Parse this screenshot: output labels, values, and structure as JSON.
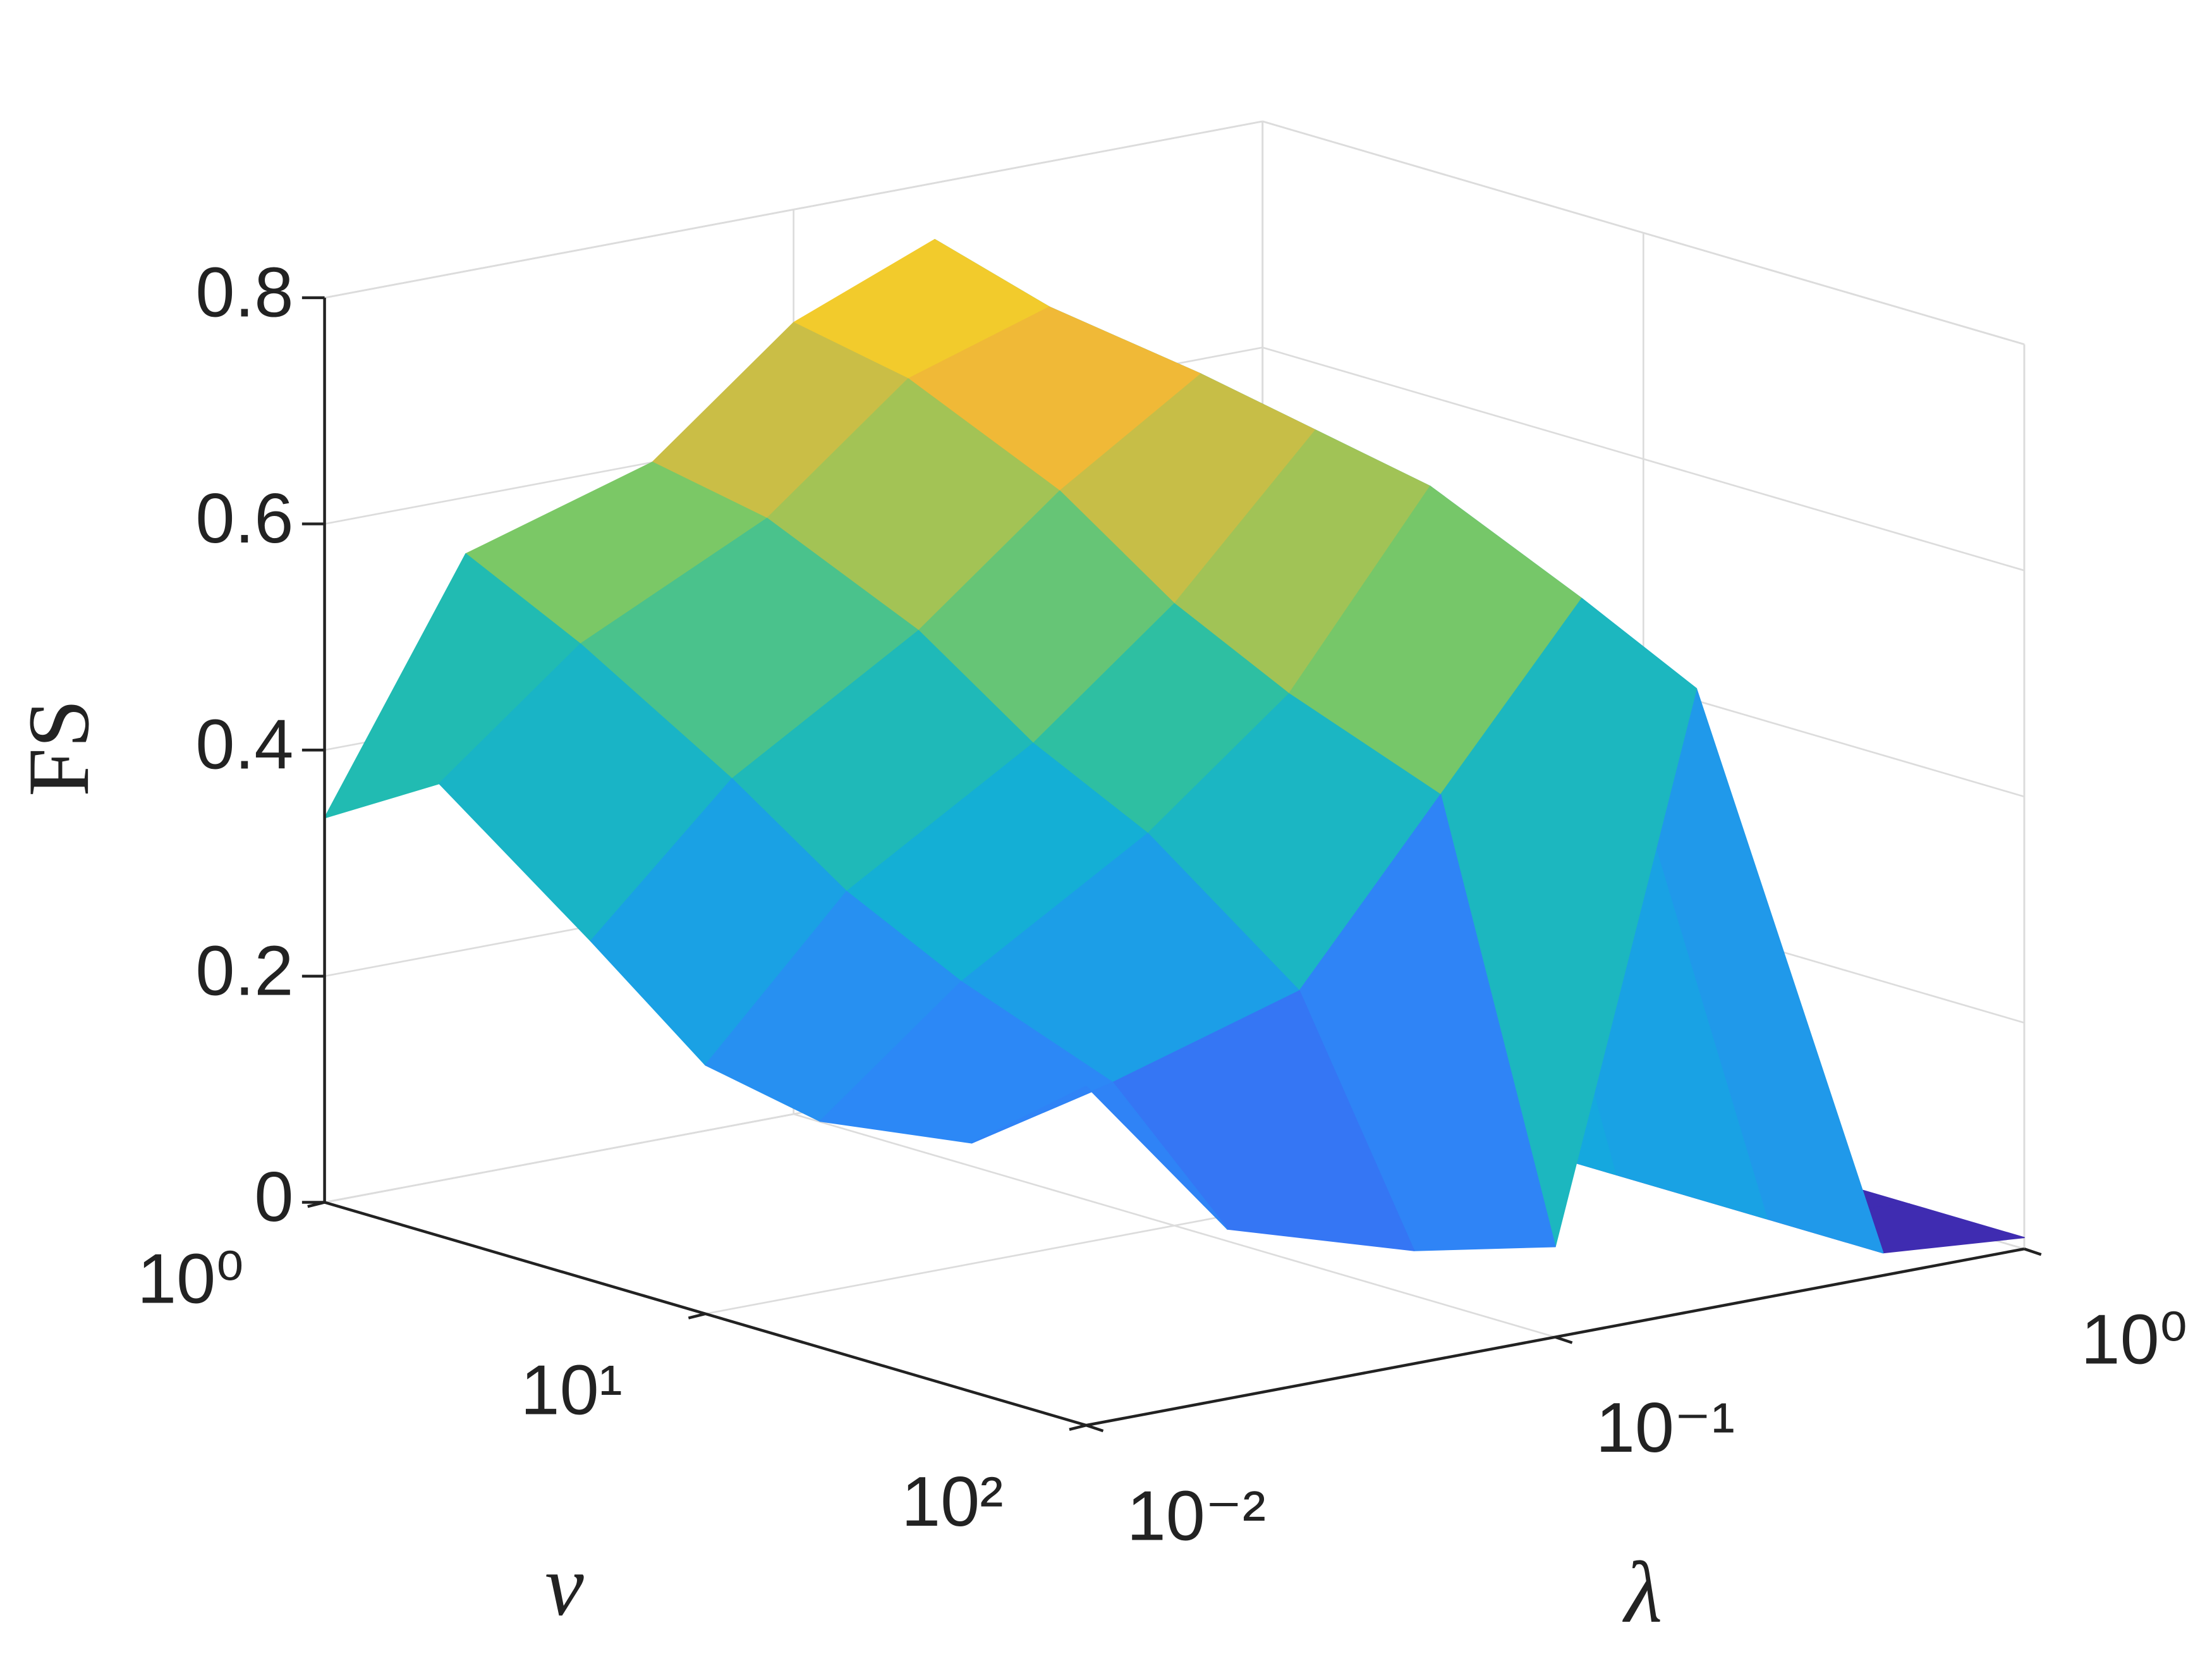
{
  "chart_data": {
    "type": "surface",
    "x_label": "ν",
    "y_label": "λ",
    "z_label": "FS",
    "x": [
      1,
      2,
      5,
      10,
      20,
      50,
      100
    ],
    "y": [
      0.01,
      0.02,
      0.05,
      0.1,
      0.2,
      0.5,
      1
    ],
    "z": [
      [
        0.34,
        0.55,
        0.6,
        0.7,
        0.75,
        0.03,
        0.01
      ],
      [
        0.4,
        0.5,
        0.58,
        0.68,
        0.72,
        0.03,
        0.01
      ],
      [
        0.3,
        0.42,
        0.52,
        0.62,
        0.7,
        0.03,
        0.01
      ],
      [
        0.22,
        0.35,
        0.45,
        0.55,
        0.68,
        0.02,
        0.01
      ],
      [
        0.2,
        0.3,
        0.4,
        0.5,
        0.66,
        0.02,
        0.01
      ],
      [
        0.22,
        0.25,
        0.3,
        0.45,
        0.6,
        0.02,
        0.01
      ],
      [
        0.3,
        0.15,
        0.1,
        0.08,
        0.55,
        0.02,
        0.01
      ]
    ],
    "xlim": [
      1,
      100
    ],
    "ylim": [
      0.01,
      1
    ],
    "zlim": [
      0,
      0.8
    ],
    "xscale": "log",
    "yscale": "log",
    "xticks": [
      {
        "value": 1,
        "label": "10⁰"
      },
      {
        "value": 10,
        "label": "10¹"
      },
      {
        "value": 100,
        "label": "10²"
      }
    ],
    "yticks": [
      {
        "value": 0.01,
        "label": "10⁻²"
      },
      {
        "value": 0.1,
        "label": "10⁻¹"
      },
      {
        "value": 1,
        "label": "10⁰"
      }
    ],
    "zticks": [
      0,
      0.2,
      0.4,
      0.6,
      0.8
    ],
    "grid": true,
    "colormap": "parula"
  }
}
